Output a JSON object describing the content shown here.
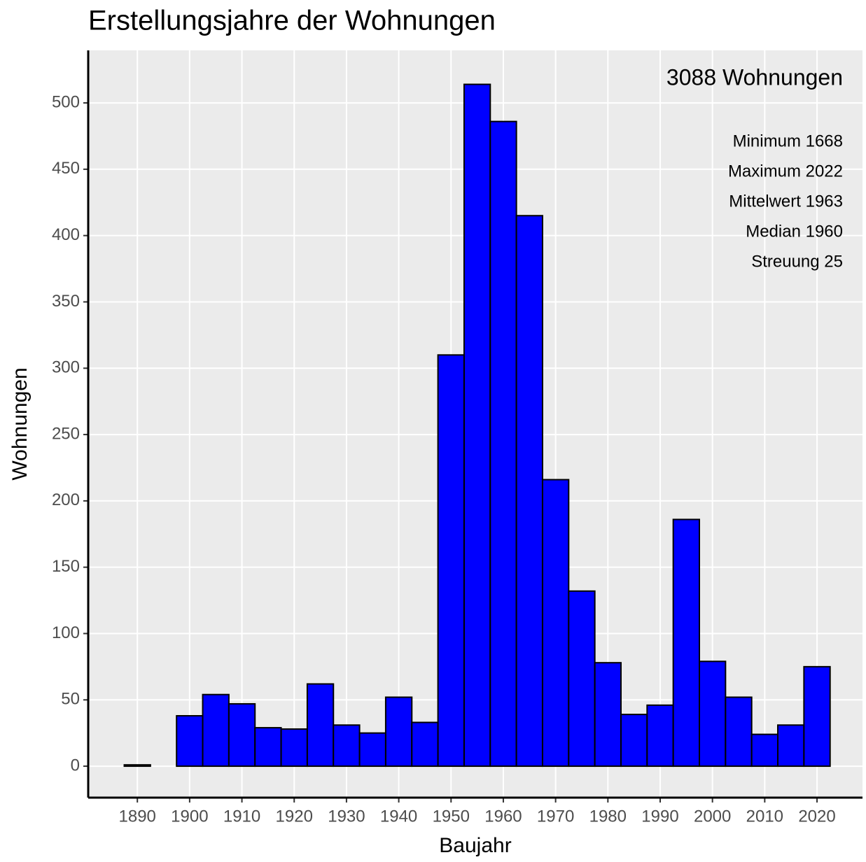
{
  "chart_data": {
    "type": "histogram",
    "title": "Erstellungsjahre der Wohnungen",
    "x_label": "Baujahr",
    "y_label": "Wohnungen",
    "annotations": [
      "3088 Wohnungen",
      "Minimum 1668",
      "Maximum 2022",
      "Mittelwert 1963",
      "Median 1960",
      "Streuung 25"
    ],
    "bins": [
      1887.5,
      1892.5,
      1897.5,
      1902.5,
      1907.5,
      1912.5,
      1917.5,
      1922.5,
      1927.5,
      1932.5,
      1937.5,
      1942.5,
      1947.5,
      1952.5,
      1957.5,
      1962.5,
      1967.5,
      1972.5,
      1977.5,
      1982.5,
      1987.5,
      1992.5,
      1997.5,
      2002.5,
      2007.5,
      2012.5,
      2017.5,
      2022.5
    ],
    "values": [
      1,
      0,
      38,
      54,
      47,
      29,
      28,
      62,
      31,
      25,
      52,
      33,
      310,
      514,
      486,
      415,
      216,
      132,
      78,
      39,
      46,
      186,
      79,
      52,
      24,
      31,
      75
    ],
    "color": "#0000ff",
    "xlim": [
      1880.6,
      2028.7
    ],
    "ylim": [
      -23.7,
      539.6
    ],
    "xticks": [
      1890,
      1900,
      1910,
      1920,
      1930,
      1940,
      1950,
      1960,
      1970,
      1980,
      1990,
      2000,
      2010,
      2020
    ],
    "yticks": [
      0,
      50,
      100,
      150,
      200,
      250,
      300,
      350,
      400,
      450,
      500
    ],
    "grid": true
  }
}
